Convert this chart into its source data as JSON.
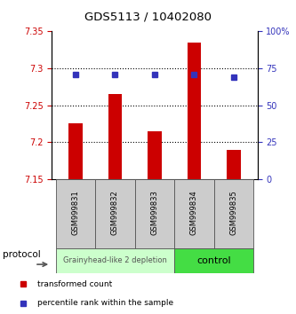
{
  "title": "GDS5113 / 10402080",
  "samples": [
    "GSM999831",
    "GSM999832",
    "GSM999833",
    "GSM999834",
    "GSM999835"
  ],
  "bar_values": [
    7.225,
    7.265,
    7.215,
    7.335,
    7.19
  ],
  "bar_base": 7.15,
  "blue_values": [
    71,
    71,
    71,
    71,
    69
  ],
  "ylim_left": [
    7.15,
    7.35
  ],
  "ylim_right": [
    0,
    100
  ],
  "yticks_left": [
    7.15,
    7.2,
    7.25,
    7.3,
    7.35
  ],
  "yticks_right": [
    0,
    25,
    50,
    75,
    100
  ],
  "ytick_labels_right": [
    "0",
    "25",
    "50",
    "75",
    "100%"
  ],
  "bar_color": "#cc0000",
  "blue_color": "#3333bb",
  "group1_label": "Grainyhead-like 2 depletion",
  "group2_label": "control",
  "group1_color": "#ccffcc",
  "group2_color": "#44dd44",
  "legend1": "transformed count",
  "legend2": "percentile rank within the sample",
  "protocol_label": "protocol",
  "bar_width": 0.35
}
